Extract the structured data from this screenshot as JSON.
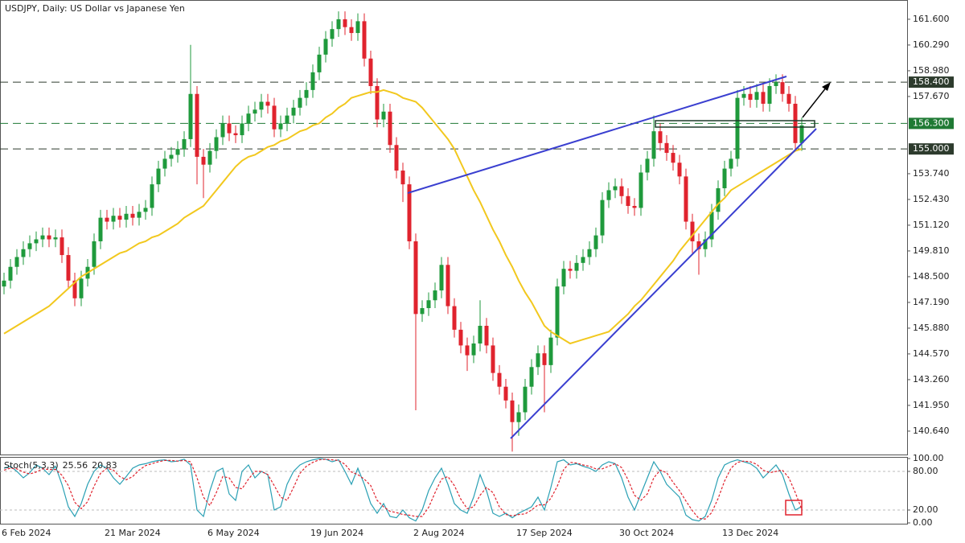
{
  "chart_data": [
    {
      "type": "candlestick",
      "title": "USDJPY, Daily:  US Dollar vs Japanese Yen",
      "categories": [
        "6 Feb 2024",
        null,
        null,
        null,
        null,
        null,
        null,
        null,
        null,
        null,
        null,
        null,
        null,
        null,
        null,
        null,
        "21 Mar 2024",
        null,
        null,
        null,
        null,
        null,
        null,
        null,
        null,
        null,
        null,
        null,
        null,
        null,
        null,
        null,
        "6 May 2024",
        null,
        null,
        null,
        null,
        null,
        null,
        null,
        null,
        null,
        null,
        null,
        null,
        null,
        null,
        null,
        "19 Jun 2024",
        null,
        null,
        null,
        null,
        null,
        null,
        null,
        null,
        null,
        null,
        null,
        null,
        null,
        null,
        null,
        "2 Aug 2024",
        null,
        null,
        null,
        null,
        null,
        null,
        null,
        null,
        null,
        null,
        null,
        null,
        null,
        null,
        null,
        "17 Sep 2024",
        null,
        null,
        null,
        null,
        null,
        null,
        null,
        null,
        null,
        null,
        null,
        null,
        null,
        null,
        null,
        "30 Oct 2024",
        null,
        null,
        null,
        null,
        null,
        null,
        null,
        null,
        null,
        null,
        null,
        null,
        null,
        null,
        null,
        "13 Dec 2024",
        null,
        null,
        null,
        null,
        null,
        null,
        null,
        null,
        null,
        null,
        null,
        null
      ],
      "open": [
        148.0,
        148.3,
        149.0,
        149.5,
        149.9,
        150.2,
        150.4,
        150.6,
        150.4,
        150.5,
        149.6,
        148.3,
        147.4,
        148.4,
        149.0,
        150.3,
        151.5,
        151.3,
        151.6,
        151.4,
        151.7,
        151.5,
        151.8,
        152.0,
        153.2,
        154.0,
        154.5,
        154.7,
        155.0,
        155.5,
        157.8,
        154.6,
        154.2,
        154.9,
        155.6,
        156.3,
        155.8,
        155.7,
        156.3,
        156.8,
        157.0,
        157.4,
        157.2,
        156.0,
        156.3,
        156.7,
        157.1,
        157.6,
        158.0,
        158.9,
        159.8,
        160.6,
        161.1,
        161.6,
        161.2,
        160.9,
        161.5,
        159.6,
        158.2,
        156.5,
        156.9,
        155.2,
        153.9,
        153.2,
        150.3,
        146.6,
        146.9,
        147.3,
        147.8,
        149.1,
        147.0,
        145.8,
        145.0,
        144.5,
        145.1,
        146.0,
        145.0,
        143.6,
        142.9,
        142.2,
        141.1,
        141.6,
        142.9,
        143.9,
        144.6,
        144.0,
        145.4,
        148.0,
        148.9,
        148.8,
        149.2,
        149.5,
        149.9,
        150.6,
        152.4,
        152.9,
        153.1,
        152.6,
        152.1,
        152.0,
        153.8,
        154.5,
        155.9,
        155.3,
        154.8,
        154.3,
        153.6,
        151.3,
        150.3,
        149.9,
        150.4,
        151.8,
        153.0,
        154.0,
        154.5,
        157.6,
        157.8,
        157.5,
        157.9,
        157.3,
        158.2,
        158.4,
        157.8,
        157.3,
        155.3
      ],
      "high": [
        148.7,
        149.4,
        149.9,
        150.3,
        150.6,
        150.8,
        151.0,
        151.0,
        150.9,
        150.9,
        150.0,
        148.7,
        148.8,
        149.4,
        150.7,
        151.9,
        151.9,
        152.0,
        152.0,
        152.1,
        152.1,
        152.2,
        152.4,
        153.6,
        154.4,
        154.9,
        155.1,
        155.4,
        155.9,
        160.3,
        158.2,
        155.0,
        155.3,
        156.0,
        156.7,
        156.7,
        156.2,
        156.7,
        157.2,
        157.4,
        157.8,
        157.8,
        157.6,
        156.7,
        157.1,
        157.5,
        158.0,
        158.4,
        159.3,
        160.2,
        161.0,
        161.5,
        162.0,
        162.0,
        161.6,
        161.9,
        161.9,
        160.0,
        158.6,
        157.3,
        157.3,
        155.6,
        154.3,
        153.6,
        150.7,
        147.3,
        147.7,
        148.2,
        149.5,
        149.5,
        147.4,
        146.2,
        145.4,
        145.5,
        147.3,
        146.4,
        145.4,
        144.0,
        143.3,
        142.6,
        142.0,
        143.3,
        144.3,
        145.0,
        145.0,
        145.8,
        148.4,
        149.3,
        149.3,
        149.6,
        149.9,
        150.3,
        151.0,
        152.8,
        153.3,
        153.5,
        153.5,
        153.0,
        152.5,
        154.2,
        154.9,
        156.7,
        156.3,
        155.7,
        155.2,
        154.7,
        154.0,
        151.7,
        150.7,
        150.8,
        152.2,
        153.4,
        154.4,
        154.9,
        158.0,
        158.2,
        158.2,
        158.3,
        158.3,
        158.6,
        158.8,
        158.8,
        158.2,
        157.7,
        156.6
      ],
      "low": [
        147.6,
        147.9,
        148.6,
        149.1,
        149.5,
        149.8,
        150.0,
        150.0,
        150.0,
        149.2,
        147.9,
        147.0,
        147.0,
        148.0,
        148.6,
        149.9,
        150.9,
        150.9,
        151.0,
        151.0,
        151.1,
        151.1,
        151.4,
        151.6,
        152.8,
        153.6,
        154.1,
        154.3,
        154.6,
        155.1,
        153.2,
        152.5,
        153.8,
        154.5,
        155.2,
        155.4,
        155.3,
        155.3,
        155.9,
        156.4,
        156.6,
        156.8,
        155.6,
        155.6,
        155.9,
        156.3,
        156.7,
        157.2,
        157.6,
        158.5,
        159.4,
        160.2,
        160.7,
        160.8,
        160.5,
        160.5,
        159.2,
        157.8,
        156.1,
        156.1,
        154.8,
        153.5,
        152.3,
        149.9,
        141.7,
        146.2,
        146.5,
        146.9,
        147.4,
        146.6,
        145.4,
        144.6,
        143.7,
        144.1,
        144.7,
        144.6,
        143.2,
        142.5,
        141.8,
        139.6,
        140.4,
        141.2,
        142.5,
        143.5,
        141.6,
        143.6,
        145.0,
        147.6,
        148.4,
        148.4,
        148.8,
        149.1,
        149.5,
        150.2,
        152.0,
        152.5,
        152.2,
        151.7,
        151.6,
        151.6,
        153.4,
        154.1,
        154.9,
        154.4,
        153.9,
        153.2,
        150.9,
        149.7,
        148.6,
        149.5,
        150.0,
        151.4,
        152.6,
        153.6,
        154.1,
        157.2,
        157.1,
        157.1,
        156.9,
        156.9,
        157.8,
        157.4,
        156.9,
        154.9,
        154.9
      ],
      "close": [
        148.3,
        149.0,
        149.5,
        149.9,
        150.2,
        150.4,
        150.6,
        150.4,
        150.5,
        149.6,
        148.3,
        147.4,
        148.4,
        149.0,
        150.3,
        151.5,
        151.3,
        151.6,
        151.4,
        151.7,
        151.5,
        151.8,
        152.0,
        153.2,
        154.0,
        154.5,
        154.7,
        155.0,
        155.5,
        157.8,
        154.6,
        154.2,
        154.9,
        155.6,
        156.3,
        155.8,
        155.7,
        156.3,
        156.8,
        157.0,
        157.4,
        157.2,
        156.0,
        156.3,
        156.7,
        157.1,
        157.6,
        158.0,
        158.9,
        159.8,
        160.6,
        161.1,
        161.6,
        161.2,
        160.9,
        161.5,
        159.6,
        158.2,
        156.5,
        156.9,
        155.2,
        153.9,
        153.2,
        150.3,
        146.6,
        146.9,
        147.3,
        147.8,
        149.1,
        147.0,
        145.8,
        145.0,
        144.5,
        145.1,
        146.0,
        145.0,
        143.6,
        142.9,
        142.2,
        141.1,
        141.6,
        142.9,
        143.9,
        144.6,
        144.0,
        145.4,
        148.0,
        148.9,
        148.8,
        149.2,
        149.5,
        149.9,
        150.6,
        152.4,
        152.9,
        153.1,
        152.6,
        152.1,
        152.0,
        153.8,
        154.5,
        155.9,
        155.3,
        154.8,
        154.3,
        153.6,
        151.3,
        150.3,
        149.9,
        150.4,
        151.8,
        153.0,
        154.0,
        154.5,
        157.6,
        157.8,
        157.5,
        157.9,
        157.3,
        158.2,
        158.4,
        157.8,
        157.3,
        155.3,
        156.2
      ],
      "up_color": "#1f9a3c",
      "down_color": "#e0232e",
      "moving_average": {
        "color": "#f2c81e",
        "values": [
          145.6,
          145.8,
          146.0,
          146.2,
          146.4,
          146.6,
          146.8,
          147.0,
          147.3,
          147.6,
          147.9,
          148.2,
          148.5,
          148.7,
          148.9,
          149.1,
          149.3,
          149.5,
          149.7,
          149.8,
          150.0,
          150.2,
          150.3,
          150.5,
          150.6,
          150.8,
          151.0,
          151.2,
          151.5,
          151.7,
          151.9,
          152.1,
          152.5,
          152.9,
          153.3,
          153.7,
          154.1,
          154.4,
          154.6,
          154.7,
          154.9,
          155.1,
          155.2,
          155.4,
          155.5,
          155.7,
          155.9,
          156.0,
          156.2,
          156.3,
          156.6,
          156.8,
          157.1,
          157.3,
          157.6,
          157.7,
          157.8,
          157.9,
          157.9,
          158.0,
          157.9,
          157.8,
          157.6,
          157.5,
          157.4,
          157.1,
          156.7,
          156.3,
          155.9,
          155.5,
          155.0,
          154.3,
          153.6,
          152.9,
          152.3,
          151.6,
          150.9,
          150.3,
          149.6,
          149.0,
          148.3,
          147.7,
          147.2,
          146.6,
          146.0,
          145.7,
          145.5,
          145.3,
          145.1,
          145.2,
          145.3,
          145.4,
          145.5,
          145.6,
          145.7,
          146.0,
          146.3,
          146.6,
          147.0,
          147.3,
          147.7,
          148.1,
          148.5,
          148.9,
          149.3,
          149.8,
          150.2,
          150.6,
          151.0,
          151.4,
          151.8,
          152.2,
          152.5,
          152.9,
          153.1,
          153.3,
          153.5,
          153.7,
          153.9,
          154.1,
          154.3,
          154.5,
          154.7,
          154.9,
          155.0
        ]
      },
      "ylim": [
        139.45,
        162.58
      ],
      "yticks": [
        {
          "value": 161.6,
          "label": "161.600"
        },
        {
          "value": 160.29,
          "label": "160.290"
        },
        {
          "value": 158.98,
          "label": "158.980"
        },
        {
          "value": 157.67,
          "label": "157.670"
        },
        {
          "value": 153.74,
          "label": "153.740"
        },
        {
          "value": 152.43,
          "label": "152.430"
        },
        {
          "value": 151.12,
          "label": "151.120"
        },
        {
          "value": 149.81,
          "label": "149.810"
        },
        {
          "value": 148.5,
          "label": "148.500"
        },
        {
          "value": 147.19,
          "label": "147.190"
        },
        {
          "value": 145.88,
          "label": "145.880"
        },
        {
          "value": 144.57,
          "label": "144.570"
        },
        {
          "value": 143.26,
          "label": "143.260"
        },
        {
          "value": 141.95,
          "label": "141.950"
        },
        {
          "value": 140.64,
          "label": "140.640"
        }
      ],
      "hlines": [
        {
          "value": 158.4,
          "label": "158.400",
          "color": "#2d3b2d"
        },
        {
          "value": 156.3,
          "label": "156.300",
          "color": "#1f7a34"
        },
        {
          "value": 155.0,
          "label": "155.000",
          "color": "#2d3b2d"
        }
      ]
    },
    {
      "type": "line",
      "title": "Stoch(5,3,3)",
      "ylim": [
        0,
        100
      ],
      "yticks": [
        {
          "value": 100,
          "label": "100.00"
        },
        {
          "value": 80,
          "label": "80.00"
        },
        {
          "value": 20,
          "label": "20.00"
        },
        {
          "value": 0,
          "label": "0.00"
        }
      ],
      "grid_levels": [
        80,
        20
      ],
      "series": [
        {
          "color": "#2aa0b4",
          "values": [
            85,
            88,
            80,
            70,
            78,
            90,
            85,
            75,
            88,
            60,
            25,
            10,
            30,
            60,
            80,
            90,
            85,
            70,
            60,
            72,
            85,
            90,
            92,
            95,
            97,
            98,
            95,
            96,
            99,
            90,
            20,
            10,
            50,
            80,
            85,
            45,
            35,
            80,
            90,
            70,
            80,
            75,
            20,
            25,
            60,
            80,
            90,
            95,
            98,
            100,
            99,
            95,
            98,
            80,
            60,
            85,
            60,
            30,
            15,
            30,
            10,
            8,
            20,
            8,
            3,
            20,
            50,
            70,
            85,
            60,
            30,
            20,
            15,
            40,
            75,
            50,
            15,
            10,
            15,
            8,
            15,
            20,
            25,
            40,
            20,
            55,
            95,
            98,
            90,
            92,
            88,
            85,
            80,
            90,
            95,
            92,
            70,
            40,
            20,
            45,
            70,
            95,
            80,
            60,
            50,
            40,
            12,
            5,
            3,
            10,
            35,
            70,
            90,
            95,
            98,
            95,
            92,
            85,
            70,
            80,
            90,
            75,
            45,
            20,
            25.56
          ]
        },
        {
          "color": "#e0232e",
          "dashed": true,
          "values": [
            82,
            85,
            84,
            79,
            76,
            79,
            84,
            83,
            83,
            74,
            58,
            32,
            22,
            33,
            57,
            77,
            85,
            82,
            72,
            67,
            72,
            82,
            89,
            92,
            95,
            97,
            97,
            96,
            97,
            95,
            70,
            40,
            27,
            47,
            72,
            70,
            55,
            53,
            68,
            80,
            80,
            75,
            58,
            40,
            35,
            55,
            77,
            88,
            94,
            98,
            99,
            98,
            97,
            91,
            79,
            75,
            68,
            58,
            35,
            25,
            18,
            16,
            13,
            12,
            10,
            10,
            24,
            47,
            68,
            72,
            58,
            37,
            22,
            25,
            43,
            55,
            47,
            25,
            13,
            11,
            13,
            14,
            20,
            28,
            28,
            38,
            57,
            83,
            94,
            93,
            90,
            88,
            84,
            84,
            88,
            92,
            86,
            67,
            43,
            35,
            45,
            70,
            82,
            78,
            63,
            50,
            34,
            19,
            7,
            6,
            16,
            38,
            65,
            85,
            94,
            96,
            95,
            91,
            82,
            78,
            80,
            82,
            70,
            47,
            20.83
          ]
        }
      ]
    }
  ]
}
